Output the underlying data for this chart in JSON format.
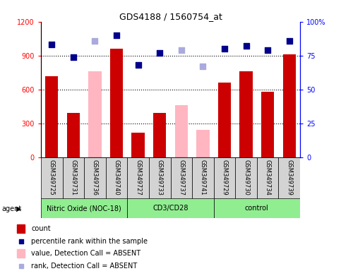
{
  "title": "GDS4188 / 1560754_at",
  "samples": [
    "GSM349725",
    "GSM349731",
    "GSM349736",
    "GSM349740",
    "GSM349727",
    "GSM349733",
    "GSM349737",
    "GSM349741",
    "GSM349729",
    "GSM349730",
    "GSM349734",
    "GSM349739"
  ],
  "groups": [
    {
      "name": "Nitric Oxide (NOC-18)",
      "count": 4,
      "color": "#90ee90"
    },
    {
      "name": "CD3/CD28",
      "count": 4,
      "color": "#90ee90"
    },
    {
      "name": "control",
      "count": 4,
      "color": "#90ee90"
    }
  ],
  "bar_values": [
    720,
    390,
    null,
    960,
    220,
    390,
    null,
    null,
    660,
    760,
    580,
    910
  ],
  "bar_color": "#cc0000",
  "absent_bar_values": [
    null,
    null,
    760,
    null,
    null,
    null,
    460,
    240,
    null,
    null,
    null,
    null
  ],
  "absent_bar_color": "#ffb6c1",
  "percentile_values": [
    83,
    74,
    null,
    90,
    68,
    77,
    null,
    null,
    80,
    82,
    79,
    86
  ],
  "percentile_color": "#00008b",
  "absent_percentile_values": [
    null,
    null,
    86,
    null,
    null,
    null,
    79,
    67,
    null,
    null,
    null,
    null
  ],
  "absent_percentile_color": "#aaaadd",
  "ylim_left": [
    0,
    1200
  ],
  "ylim_right": [
    0,
    100
  ],
  "yticks_left": [
    0,
    300,
    600,
    900,
    1200
  ],
  "yticks_right": [
    0,
    25,
    50,
    75,
    100
  ],
  "ytick_right_labels": [
    "0",
    "25",
    "50",
    "75",
    "100%"
  ],
  "grid_vals": [
    300,
    600,
    900
  ],
  "legend_items": [
    {
      "label": "count",
      "color": "#cc0000",
      "type": "bar"
    },
    {
      "label": "percentile rank within the sample",
      "color": "#00008b",
      "type": "square"
    },
    {
      "label": "value, Detection Call = ABSENT",
      "color": "#ffb6c1",
      "type": "bar"
    },
    {
      "label": "rank, Detection Call = ABSENT",
      "color": "#aaaadd",
      "type": "square"
    }
  ]
}
